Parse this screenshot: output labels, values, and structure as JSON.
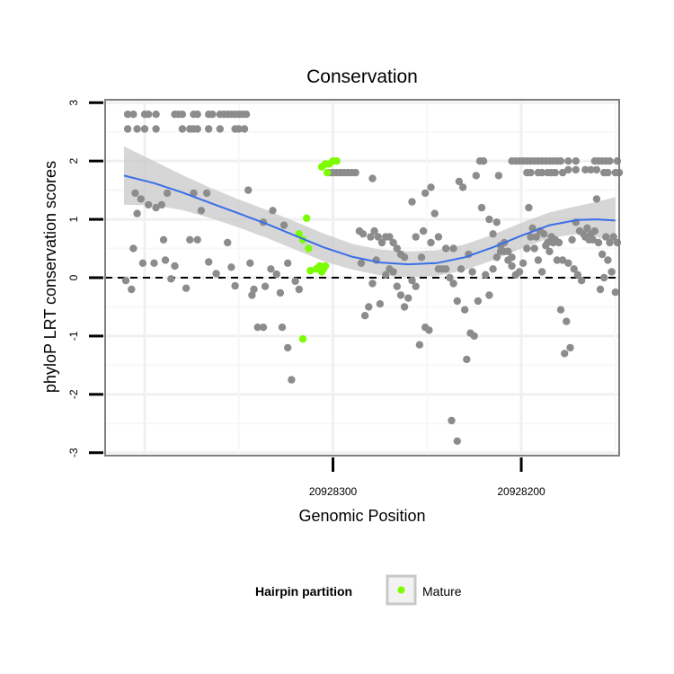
{
  "chart_data": {
    "type": "scatter",
    "title": "Conservation",
    "xlabel": "Genomic Position",
    "ylabel": "phyloP LRT conservation scores",
    "x_reversed": true,
    "xlim": [
      20928421,
      20928148
    ],
    "ylim": [
      -3.05,
      3.05
    ],
    "y_ticks": [
      "3",
      "2",
      "1",
      "0",
      "-1",
      "-2",
      "-3"
    ],
    "x_ticks": [
      {
        "value": 20928300,
        "label": "20928300"
      },
      {
        "value": 20928200,
        "label": "20928200"
      }
    ],
    "reference_line": {
      "y": 0,
      "style": "dashed"
    },
    "colors": {
      "other": "#8c8c8c",
      "mature": "#7cfc00",
      "smooth": "#3a6ee8",
      "band": "#c8c8c8",
      "grid": "#f0f0f0"
    },
    "legend": {
      "title": "Hairpin partition",
      "entries": [
        {
          "label": "Mature",
          "color": "#7cfc00"
        }
      ],
      "position": "bottom"
    },
    "series": [
      {
        "name": "",
        "points": [
          [
            20928409,
            2.8
          ],
          [
            20928406,
            2.8
          ],
          [
            20928400,
            2.8
          ],
          [
            20928398,
            2.8
          ],
          [
            20928394,
            2.8
          ],
          [
            20928384,
            2.8
          ],
          [
            20928382,
            2.8
          ],
          [
            20928380,
            2.8
          ],
          [
            20928374,
            2.8
          ],
          [
            20928372,
            2.8
          ],
          [
            20928366,
            2.8
          ],
          [
            20928364,
            2.8
          ],
          [
            20928360,
            2.8
          ],
          [
            20928358,
            2.8
          ],
          [
            20928356,
            2.8
          ],
          [
            20928354,
            2.8
          ],
          [
            20928352,
            2.8
          ],
          [
            20928350,
            2.8
          ],
          [
            20928348,
            2.8
          ],
          [
            20928346,
            2.8
          ],
          [
            20928409,
            2.55
          ],
          [
            20928404,
            2.55
          ],
          [
            20928400,
            2.55
          ],
          [
            20928394,
            2.55
          ],
          [
            20928380,
            2.55
          ],
          [
            20928376,
            2.55
          ],
          [
            20928374,
            2.55
          ],
          [
            20928372,
            2.55
          ],
          [
            20928366,
            2.55
          ],
          [
            20928360,
            2.55
          ],
          [
            20928352,
            2.55
          ],
          [
            20928350,
            2.55
          ],
          [
            20928347,
            2.55
          ],
          [
            20928405,
            1.45
          ],
          [
            20928402,
            1.35
          ],
          [
            20928398,
            1.25
          ],
          [
            20928394,
            1.2
          ],
          [
            20928391,
            1.25
          ],
          [
            20928388,
            1.45
          ],
          [
            20928374,
            1.45
          ],
          [
            20928370,
            1.15
          ],
          [
            20928367,
            1.45
          ],
          [
            20928345,
            1.5
          ],
          [
            20928337,
            0.95
          ],
          [
            20928332,
            1.15
          ],
          [
            20928326,
            0.9
          ],
          [
            20928406,
            0.5
          ],
          [
            20928404,
            1.1
          ],
          [
            20928390,
            0.65
          ],
          [
            20928384,
            0.2
          ],
          [
            20928376,
            0.65
          ],
          [
            20928372,
            0.65
          ],
          [
            20928362,
            0.07
          ],
          [
            20928356,
            0.6
          ],
          [
            20928354,
            0.18
          ],
          [
            20928352,
            -0.14
          ],
          [
            20928344,
            0.25
          ],
          [
            20928342,
            -0.2
          ],
          [
            20928340,
            -0.85
          ],
          [
            20928337,
            -0.85
          ],
          [
            20928333,
            0.15
          ],
          [
            20928330,
            0.06
          ],
          [
            20928328,
            -0.26
          ],
          [
            20928324,
            0.25
          ],
          [
            20928320,
            -0.06
          ],
          [
            20928318,
            -0.2
          ],
          [
            20928327,
            -0.85
          ],
          [
            20928324,
            -1.2
          ],
          [
            20928322,
            -1.75
          ],
          [
            20928410,
            -0.05
          ],
          [
            20928407,
            -0.2
          ],
          [
            20928401,
            0.25
          ],
          [
            20928395,
            0.25
          ],
          [
            20928389,
            0.3
          ],
          [
            20928386,
            -0.02
          ],
          [
            20928378,
            -0.18
          ],
          [
            20928366,
            0.27
          ],
          [
            20928343,
            -0.3
          ],
          [
            20928336,
            -0.15
          ],
          [
            20928302,
            1.8
          ],
          [
            20928300,
            1.8
          ],
          [
            20928298,
            1.8
          ],
          [
            20928296,
            1.8
          ],
          [
            20928294,
            1.8
          ],
          [
            20928292,
            1.8
          ],
          [
            20928290,
            1.8
          ],
          [
            20928288,
            1.8
          ],
          [
            20928279,
            1.7
          ],
          [
            20928286,
            0.8
          ],
          [
            20928284,
            0.75
          ],
          [
            20928280,
            0.7
          ],
          [
            20928278,
            0.8
          ],
          [
            20928276,
            0.7
          ],
          [
            20928274,
            0.6
          ],
          [
            20928272,
            0.7
          ],
          [
            20928270,
            0.7
          ],
          [
            20928268,
            0.6
          ],
          [
            20928266,
            0.5
          ],
          [
            20928264,
            0.4
          ],
          [
            20928262,
            0.35
          ],
          [
            20928285,
            0.25
          ],
          [
            20928283,
            -0.65
          ],
          [
            20928281,
            -0.5
          ],
          [
            20928279,
            -0.1
          ],
          [
            20928277,
            0.3
          ],
          [
            20928275,
            -0.45
          ],
          [
            20928272,
            0.05
          ],
          [
            20928270,
            0.15
          ],
          [
            20928268,
            0.1
          ],
          [
            20928266,
            -0.15
          ],
          [
            20928264,
            -0.3
          ],
          [
            20928262,
            -0.5
          ],
          [
            20928260,
            -0.35
          ],
          [
            20928258,
            -0.05
          ],
          [
            20928256,
            -0.15
          ],
          [
            20928258,
            1.3
          ],
          [
            20928254,
            -1.15
          ],
          [
            20928251,
            -0.85
          ],
          [
            20928249,
            -0.9
          ],
          [
            20928253,
            0.35
          ],
          [
            20928251,
            1.45
          ],
          [
            20928248,
            1.55
          ],
          [
            20928246,
            1.1
          ],
          [
            20928244,
            0.15
          ],
          [
            20928242,
            0.15
          ],
          [
            20928240,
            0.15
          ],
          [
            20928238,
            0.0
          ],
          [
            20928236,
            -0.1
          ],
          [
            20928234,
            -0.4
          ],
          [
            20928233,
            1.65
          ],
          [
            20928231,
            1.55
          ],
          [
            20928230,
            -0.55
          ],
          [
            20928229,
            -1.4
          ],
          [
            20928227,
            -0.95
          ],
          [
            20928225,
            -1.0
          ],
          [
            20928223,
            -0.4
          ],
          [
            20928221,
            1.2
          ],
          [
            20928219,
            0.05
          ],
          [
            20928217,
            -0.3
          ],
          [
            20928215,
            0.15
          ],
          [
            20928213,
            0.35
          ],
          [
            20928211,
            0.55
          ],
          [
            20928209,
            0.6
          ],
          [
            20928207,
            0.3
          ],
          [
            20928205,
            0.2
          ],
          [
            20928203,
            0.05
          ],
          [
            20928201,
            0.1
          ],
          [
            20928199,
            0.25
          ],
          [
            20928197,
            0.5
          ],
          [
            20928195,
            0.7
          ],
          [
            20928193,
            0.5
          ],
          [
            20928191,
            0.3
          ],
          [
            20928189,
            0.1
          ],
          [
            20928187,
            0.55
          ],
          [
            20928185,
            0.45
          ],
          [
            20928183,
            0.6
          ],
          [
            20928181,
            0.3
          ],
          [
            20928179,
            -0.55
          ],
          [
            20928177,
            -1.3
          ],
          [
            20928175,
            0.25
          ],
          [
            20928173,
            0.65
          ],
          [
            20928171,
            0.95
          ],
          [
            20928169,
            0.8
          ],
          [
            20928167,
            0.75
          ],
          [
            20928165,
            0.85
          ],
          [
            20928163,
            0.75
          ],
          [
            20928161,
            0.8
          ],
          [
            20928159,
            0.6
          ],
          [
            20928157,
            0.4
          ],
          [
            20928155,
            0.7
          ],
          [
            20928153,
            0.6
          ],
          [
            20928158,
            -0.2
          ],
          [
            20928160,
            1.35
          ],
          [
            20928151,
            0.7
          ],
          [
            20928196,
            1.2
          ],
          [
            20928194,
            0.85
          ],
          [
            20928192,
            0.7
          ],
          [
            20928190,
            0.8
          ],
          [
            20928188,
            0.75
          ],
          [
            20928186,
            0.6
          ],
          [
            20928184,
            0.7
          ],
          [
            20928182,
            0.65
          ],
          [
            20928180,
            0.6
          ],
          [
            20928178,
            0.3
          ],
          [
            20928176,
            -0.75
          ],
          [
            20928174,
            -1.2
          ],
          [
            20928172,
            0.15
          ],
          [
            20928170,
            0.05
          ],
          [
            20928168,
            -0.05
          ],
          [
            20928166,
            0.7
          ],
          [
            20928164,
            0.65
          ],
          [
            20928162,
            0.65
          ],
          [
            20928156,
            0.0
          ],
          [
            20928154,
            0.3
          ],
          [
            20928152,
            0.1
          ],
          [
            20928149,
            0.6
          ],
          [
            20928150,
            -0.25
          ],
          [
            20928224,
            1.75
          ],
          [
            20928222,
            2.0
          ],
          [
            20928220,
            2.0
          ],
          [
            20928212,
            1.75
          ],
          [
            20928205,
            2.0
          ],
          [
            20928203,
            2.0
          ],
          [
            20928201,
            2.0
          ],
          [
            20928199,
            2.0
          ],
          [
            20928197,
            2.0
          ],
          [
            20928195,
            2.0
          ],
          [
            20928193,
            2.0
          ],
          [
            20928191,
            2.0
          ],
          [
            20928189,
            2.0
          ],
          [
            20928187,
            2.0
          ],
          [
            20928185,
            2.0
          ],
          [
            20928183,
            2.0
          ],
          [
            20928181,
            2.0
          ],
          [
            20928179,
            2.0
          ],
          [
            20928175,
            2.0
          ],
          [
            20928171,
            2.0
          ],
          [
            20928161,
            2.0
          ],
          [
            20928159,
            2.0
          ],
          [
            20928157,
            2.0
          ],
          [
            20928155,
            2.0
          ],
          [
            20928153,
            2.0
          ],
          [
            20928149,
            2.0
          ],
          [
            20928197,
            1.8
          ],
          [
            20928195,
            1.8
          ],
          [
            20928191,
            1.8
          ],
          [
            20928189,
            1.8
          ],
          [
            20928186,
            1.8
          ],
          [
            20928184,
            1.8
          ],
          [
            20928182,
            1.8
          ],
          [
            20928178,
            1.8
          ],
          [
            20928175,
            1.85
          ],
          [
            20928171,
            1.85
          ],
          [
            20928166,
            1.85
          ],
          [
            20928163,
            1.85
          ],
          [
            20928160,
            1.85
          ],
          [
            20928156,
            1.8
          ],
          [
            20928154,
            1.8
          ],
          [
            20928150,
            1.8
          ],
          [
            20928148,
            1.8
          ],
          [
            20928217,
            1.0
          ],
          [
            20928215,
            0.75
          ],
          [
            20928213,
            0.95
          ],
          [
            20928211,
            0.45
          ],
          [
            20928209,
            0.45
          ],
          [
            20928207,
            0.45
          ],
          [
            20928205,
            0.35
          ],
          [
            20928237,
            -2.45
          ],
          [
            20928234,
            -2.8
          ],
          [
            20928226,
            0.1
          ],
          [
            20928228,
            0.4
          ],
          [
            20928232,
            0.15
          ],
          [
            20928236,
            0.5
          ],
          [
            20928240,
            0.5
          ],
          [
            20928244,
            0.7
          ],
          [
            20928248,
            0.6
          ],
          [
            20928252,
            0.8
          ],
          [
            20928256,
            0.7
          ]
        ]
      },
      {
        "name": "Mature",
        "points": [
          [
            20928298,
            2.0
          ],
          [
            20928300,
            2.0
          ],
          [
            20928302,
            1.95
          ],
          [
            20928304,
            1.95
          ],
          [
            20928303,
            1.8
          ],
          [
            20928306,
            1.9
          ],
          [
            20928314,
            1.02
          ],
          [
            20928313,
            0.5
          ],
          [
            20928316,
            0.65
          ],
          [
            20928318,
            0.75
          ],
          [
            20928312,
            0.12
          ],
          [
            20928309,
            0.15
          ],
          [
            20928307,
            0.2
          ],
          [
            20928306,
            0.1
          ],
          [
            20928305,
            0.15
          ],
          [
            20928304,
            0.2
          ],
          [
            20928316,
            -1.05
          ]
        ]
      }
    ],
    "smooth": {
      "x": [
        20928411,
        20928395,
        20928380,
        20928365,
        20928350,
        20928335,
        20928320,
        20928305,
        20928290,
        20928275,
        20928260,
        20928245,
        20928230,
        20928215,
        20928200,
        20928185,
        20928170,
        20928160,
        20928150
      ],
      "y": [
        1.75,
        1.62,
        1.46,
        1.28,
        1.1,
        0.92,
        0.72,
        0.52,
        0.36,
        0.26,
        0.23,
        0.25,
        0.35,
        0.52,
        0.72,
        0.9,
        0.99,
        1.0,
        0.98
      ],
      "band_width": [
        0.5,
        0.38,
        0.3,
        0.26,
        0.24,
        0.24,
        0.24,
        0.24,
        0.22,
        0.22,
        0.22,
        0.22,
        0.22,
        0.22,
        0.22,
        0.22,
        0.24,
        0.3,
        0.4
      ]
    }
  }
}
